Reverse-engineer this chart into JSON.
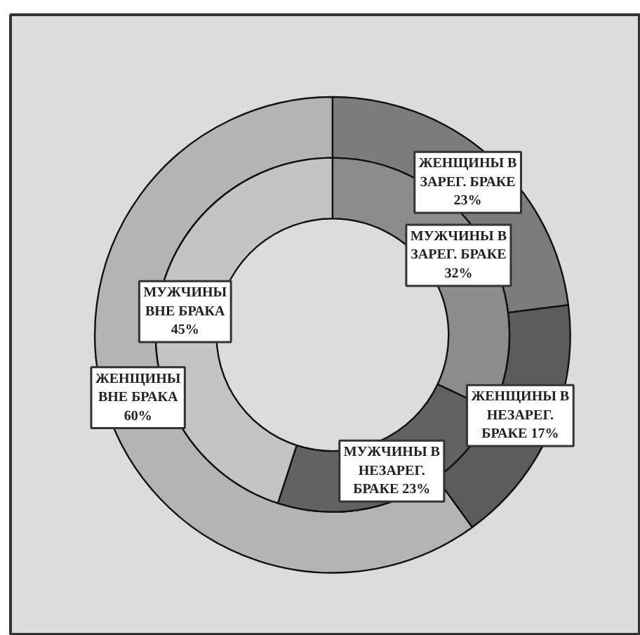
{
  "chart_data": {
    "type": "donut",
    "series": [
      {
        "values": [
          23,
          17,
          60
        ],
        "colors": [
          "#7c7c7c",
          "#5c5c5c",
          "#b4b4b4"
        ],
        "value_labels": [
          "ЖЕНЩИНЫ В\nЗАРЕГ. БРАКЕ\n23%",
          "ЖЕНЩИНЫ В\nНЕЗАРЕГ.\nБРАКЕ 17%",
          "ЖЕНЩИНЫ\nВНЕ БРАКА\n60%"
        ]
      },
      {
        "values": [
          32,
          23,
          45
        ],
        "colors": [
          "#8c8c8c",
          "#626262",
          "#c4c4c4"
        ],
        "value_labels": [
          "МУЖЧИНЫ В\nЗАРЕГ. БРАКЕ\n32%",
          "МУЖЧИНЫ В\nНЕЗАРЕГ.\nБРАКЕ 23%",
          "МУЖЧИНЫ\nВНЕ БРАКА\n45%"
        ]
      }
    ]
  }
}
